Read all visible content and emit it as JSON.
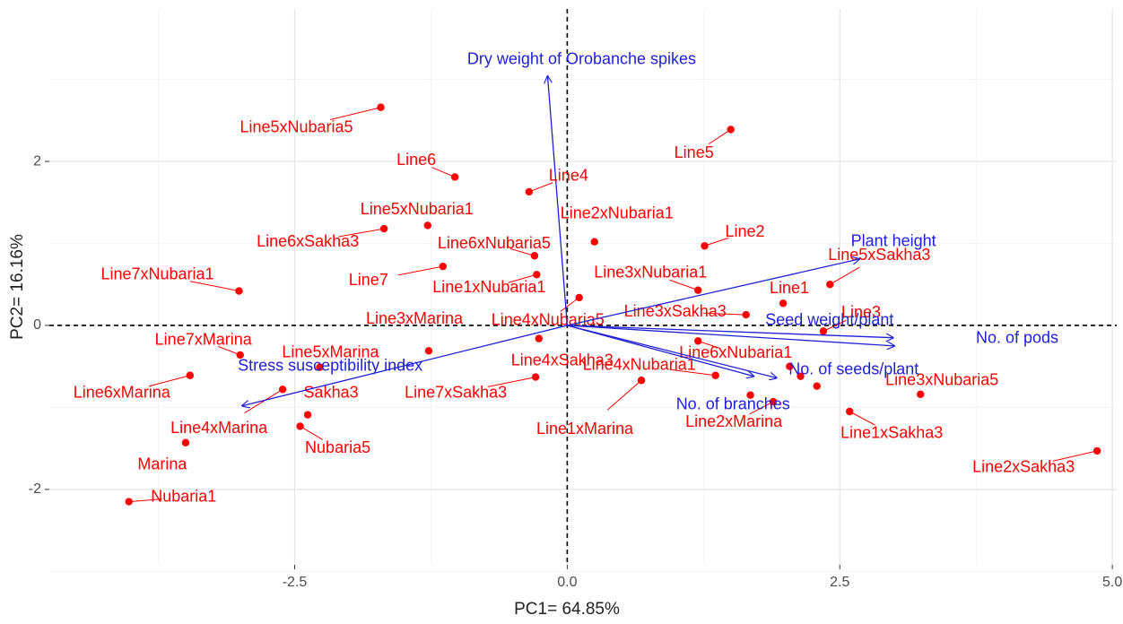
{
  "chart_data": {
    "type": "scatter",
    "xlabel": "PC1= 64.85%",
    "ylabel": "PC2= 16.16%",
    "xlim": [
      -4.75,
      5.04
    ],
    "ylim": [
      -2.92,
      3.86
    ],
    "xticks": [
      -2.5,
      {
        "value": 0,
        "label": "0.0"
      },
      2.5,
      {
        "value": 5,
        "label": "5.0"
      }
    ],
    "yticks": [
      -2,
      0,
      2
    ],
    "xminorticks": [
      -3.75,
      -1.25,
      1.25,
      3.75
    ],
    "yminorticks": [
      -3,
      -1,
      1,
      3
    ],
    "grid": true,
    "zero_lines": true,
    "color": "#ff0000",
    "labels": [
      "Line5xNubaria5",
      "Line6",
      "Line4",
      "Line5",
      "Line5xNubaria1",
      "Line2xNubaria1",
      "Line6xSakha3",
      "Line6xNubaria5",
      "Line2",
      "Line7xNubaria1",
      "Line7",
      "Line1xNubaria1",
      "Line3xNubaria1",
      "Line5xSakha3",
      "Line1",
      "Line3xSakha3",
      "Line3",
      "Line4xNubaria5",
      "Line3xMarina",
      "Line7xMarina",
      "Line5xMarina",
      "Line6xNubaria1",
      "Line4xSakha3",
      "Line4xNubaria1",
      "Line6xMarina",
      "Line3xNubaria5",
      "Line7xSakha3",
      "Sakha3",
      "Line1xMarina",
      "Line2xMarina",
      "Line4xMarina",
      "Nubaria5",
      "Line1xSakha3",
      "Marina",
      "Line2xSakha3",
      "Nubaria1",
      null,
      null,
      null,
      null
    ],
    "x": [
      -1.71,
      -1.03,
      -0.35,
      1.5,
      -1.28,
      0.25,
      -1.68,
      -0.3,
      1.26,
      -3.01,
      -1.14,
      -0.28,
      1.2,
      2.41,
      1.98,
      1.64,
      2.35,
      0.11,
      -1.27,
      -3.0,
      -2.27,
      1.2,
      -0.26,
      1.36,
      -3.46,
      3.24,
      -0.29,
      -2.38,
      0.68,
      1.89,
      -2.61,
      -2.45,
      2.59,
      -3.5,
      4.86,
      -4.02,
      2.04,
      2.14,
      2.29,
      1.68
    ],
    "values": [
      2.66,
      1.81,
      1.63,
      2.39,
      1.22,
      1.02,
      1.18,
      0.85,
      0.97,
      0.42,
      0.72,
      0.62,
      0.43,
      0.5,
      0.27,
      0.13,
      -0.07,
      0.34,
      -0.31,
      -0.36,
      -0.51,
      -0.19,
      -0.16,
      -0.61,
      -0.61,
      -0.84,
      -0.63,
      -1.09,
      -0.67,
      -0.93,
      -0.78,
      -1.23,
      -1.05,
      -1.43,
      -1.53,
      -2.15,
      -0.5,
      -0.62,
      -0.74,
      -0.85
    ],
    "vectors": {
      "color": "#1f1fd6",
      "labels": [
        "Dry weight of Orobanche spikes",
        "Plant height",
        "Seed weight/plant",
        "No. of pods",
        "No. of seeds/plant",
        "No. of branches",
        "Stress susceptibility index"
      ],
      "x": [
        -0.18,
        2.68,
        2.99,
        3.0,
        1.92,
        1.71,
        -2.98
      ],
      "y": [
        3.04,
        0.81,
        -0.15,
        -0.25,
        -0.64,
        -0.62,
        -0.98
      ]
    }
  }
}
